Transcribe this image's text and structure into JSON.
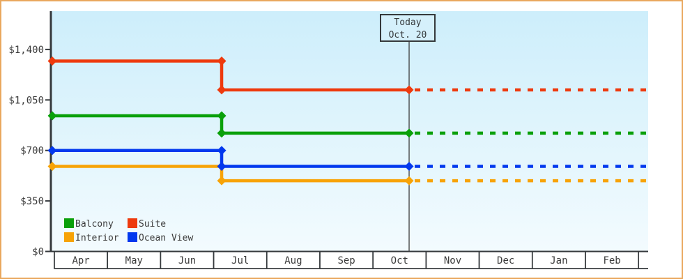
{
  "window": {
    "frame_border_color": "#e9a85e",
    "background_color": "#ffffff"
  },
  "colors": {
    "axis": "#35393c",
    "text": "#3b3b3b",
    "plot_bg_top": "#cdeefb",
    "plot_bg_bottom": "#f3fbfe",
    "today_line": "#3c3c3c",
    "today_box_bg": "#d5f0fb",
    "month_cell_bg": "#ffffff"
  },
  "chart_data": {
    "type": "line",
    "subtype": "step-line-with-dotted-forecast",
    "title": "",
    "xlabel": "",
    "ylabel": "",
    "grid": false,
    "x_categories": [
      "Apr",
      "May",
      "Jun",
      "Jul",
      "Aug",
      "Sep",
      "Oct",
      "Nov",
      "Dec",
      "Jan",
      "Feb"
    ],
    "y_ticks": [
      {
        "label": "$0",
        "value": 0
      },
      {
        "label": "$350",
        "value": 350
      },
      {
        "label": "$700",
        "value": 700
      },
      {
        "label": "$1,050",
        "value": 1050
      },
      {
        "label": "$1,400",
        "value": 1400
      }
    ],
    "ylim": [
      0,
      1665
    ],
    "price_drop": {
      "month": "Jul",
      "month_index": 3,
      "month_fraction": 0.15
    },
    "today": {
      "label_line1": "Today",
      "label_line2": "Oct. 20",
      "month": "Oct",
      "month_index": 6,
      "month_fraction": 0.68
    },
    "forecast_note": "dotted line continues at current value after today",
    "series": [
      {
        "name": "Interior",
        "color": "#f7a306",
        "value_until_jul": 590,
        "value_after_jul": 490
      },
      {
        "name": "Ocean View",
        "color": "#0238ee",
        "value_until_jul": 700,
        "value_after_jul": 590
      },
      {
        "name": "Balcony",
        "color": "#0aa00a",
        "value_until_jul": 940,
        "value_after_jul": 820
      },
      {
        "name": "Suite",
        "color": "#ee3a0e",
        "value_until_jul": 1320,
        "value_after_jul": 1120
      }
    ],
    "legend": {
      "position": "bottom-left-inside-plot",
      "rows": [
        [
          {
            "label": "Balcony",
            "color": "#0aa00a"
          },
          {
            "label": "Suite",
            "color": "#ee3a0e"
          }
        ],
        [
          {
            "label": "Interior",
            "color": "#f7a306"
          },
          {
            "label": "Ocean View",
            "color": "#0238ee"
          }
        ]
      ]
    }
  }
}
